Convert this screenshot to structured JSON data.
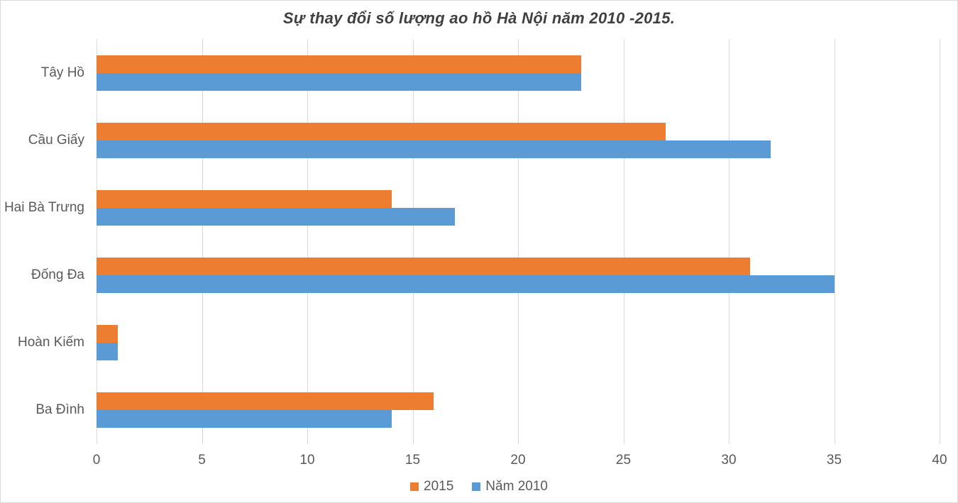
{
  "title": "Sự thay đổi số lượng ao hồ Hà Nội năm 2010 -2015.",
  "chart_data": {
    "type": "bar",
    "orientation": "horizontal",
    "title": "Sự thay đổi số lượng ao hồ Hà Nội năm 2010 -2015.",
    "categories": [
      "Tây Hồ",
      "Cầu Giấy",
      "Hai Bà Trưng",
      "Đống Đa",
      "Hoàn Kiếm",
      "Ba Đình"
    ],
    "series": [
      {
        "name": "2015",
        "color": "#ED7D31",
        "values": [
          23,
          27,
          14,
          31,
          1,
          16
        ]
      },
      {
        "name": "Năm 2010",
        "color": "#5B9BD5",
        "values": [
          23,
          32,
          17,
          35,
          1,
          14
        ]
      }
    ],
    "xlim": [
      0,
      40
    ],
    "xticks": [
      0,
      5,
      10,
      15,
      20,
      25,
      30,
      35,
      40
    ],
    "xlabel": "",
    "ylabel": "",
    "grid": true,
    "gridline_color": "#D9D9D9",
    "axis_text_color": "#595959",
    "title_color": "#404040",
    "legend_position": "bottom"
  }
}
